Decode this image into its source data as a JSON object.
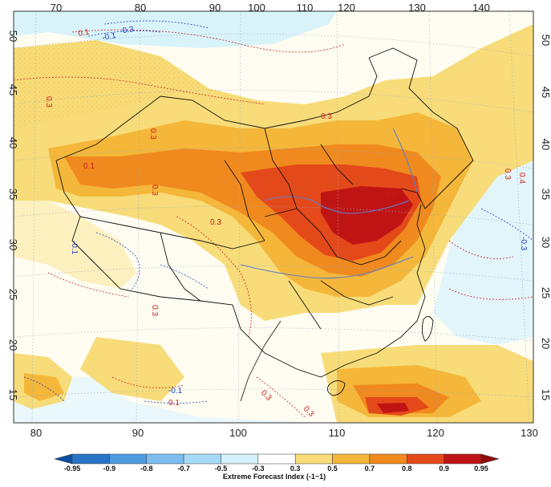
{
  "map": {
    "title_fragment": "",
    "top_axis_labels": [
      "70",
      "80",
      "90",
      "100",
      "110",
      "120",
      "130",
      "140"
    ],
    "bottom_axis_labels": [
      "80",
      "90",
      "100",
      "110",
      "120",
      "130"
    ],
    "left_axis_labels": [
      "50",
      "45",
      "40",
      "35",
      "30",
      "25",
      "20",
      "15"
    ],
    "right_axis_labels": [
      "50",
      "45",
      "40",
      "35",
      "30",
      "25",
      "20",
      "15"
    ],
    "contour_labels": [
      {
        "text": "0.1",
        "color": "red"
      },
      {
        "text": "-0.1",
        "color": "blue"
      },
      {
        "text": "-0.3",
        "color": "blue"
      },
      {
        "text": "0.3",
        "color": "red"
      },
      {
        "text": "0.3",
        "color": "red"
      },
      {
        "text": "0.3",
        "color": "red"
      },
      {
        "text": "0.3",
        "color": "red"
      },
      {
        "text": "0.3",
        "color": "red"
      },
      {
        "text": "0.3",
        "color": "red"
      },
      {
        "text": "0.3",
        "color": "red"
      },
      {
        "text": "0.1",
        "color": "red"
      },
      {
        "text": "-0.1",
        "color": "blue"
      },
      {
        "text": "0.3",
        "color": "red"
      },
      {
        "text": "-0.1",
        "color": "blue"
      },
      {
        "text": "0.3",
        "color": "red"
      },
      {
        "text": "0.1",
        "color": "red"
      },
      {
        "text": "-0.3",
        "color": "blue"
      },
      {
        "text": "0.3",
        "color": "red"
      },
      {
        "text": "0.4",
        "color": "red"
      }
    ]
  },
  "colorbar": {
    "title": "Extreme Forecast Index (-1~1)",
    "labels": [
      "-0.95",
      "-0.9",
      "-0.8",
      "-0.7",
      "-0.5",
      "-0.3",
      "0.3",
      "0.5",
      "0.7",
      "0.8",
      "0.9",
      "0.95"
    ],
    "colors": [
      "#0b4ea2",
      "#2a74c8",
      "#4f9be0",
      "#7dbdf0",
      "#a8dbf7",
      "#d6f1fb",
      "#ffffff",
      "#f7dc79",
      "#f5b73a",
      "#f08a1e",
      "#e4491a",
      "#c01414",
      "#8e0c0c"
    ]
  },
  "palette": {
    "ocean": "#d8f3fa",
    "land_light": "#fffdf2",
    "efi_05": "#f7dc79",
    "efi_07": "#f5b73a",
    "efi_08": "#f08a1e",
    "efi_09": "#e4491a",
    "efi_095": "#c01414",
    "border": "#111111",
    "river": "#5b7fd1",
    "contour_pos": "#c81e1e",
    "contour_neg": "#1f3fbf"
  }
}
